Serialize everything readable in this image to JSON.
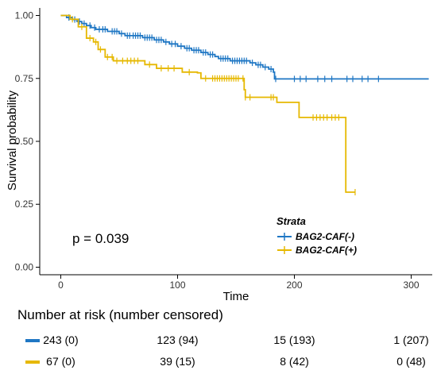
{
  "chart_data": {
    "type": "line",
    "subtype": "kaplan-meier-step",
    "xlabel": "Time",
    "ylabel": "Survival probability",
    "xlim": [
      -18,
      318
    ],
    "ylim": [
      -0.03,
      1.03
    ],
    "xticks": [
      0,
      100,
      200,
      300
    ],
    "yticks": [
      0.0,
      0.25,
      0.5,
      0.75,
      1.0
    ],
    "ytick_labels": [
      "0.00",
      "0.25",
      "0.50",
      "0.75",
      "1.00"
    ],
    "grid": false,
    "annotation": "p = 0.039",
    "legend": {
      "title": "Strata",
      "placement": "bottom-right",
      "entries": [
        "BAG2-CAF(-)",
        "BAG2-CAF(+)"
      ]
    },
    "series": [
      {
        "name": "BAG2-CAF(-)",
        "color": "#1f77c4",
        "steps": [
          [
            0,
            1.0
          ],
          [
            5,
            0.992
          ],
          [
            10,
            0.984
          ],
          [
            14,
            0.976
          ],
          [
            18,
            0.968
          ],
          [
            22,
            0.96
          ],
          [
            26,
            0.952
          ],
          [
            30,
            0.945
          ],
          [
            40,
            0.937
          ],
          [
            50,
            0.928
          ],
          [
            55,
            0.92
          ],
          [
            70,
            0.912
          ],
          [
            80,
            0.903
          ],
          [
            88,
            0.895
          ],
          [
            93,
            0.887
          ],
          [
            100,
            0.878
          ],
          [
            106,
            0.87
          ],
          [
            112,
            0.862
          ],
          [
            120,
            0.853
          ],
          [
            126,
            0.845
          ],
          [
            132,
            0.837
          ],
          [
            135,
            0.829
          ],
          [
            145,
            0.82
          ],
          [
            162,
            0.812
          ],
          [
            167,
            0.804
          ],
          [
            173,
            0.795
          ],
          [
            178,
            0.787
          ],
          [
            182,
            0.775
          ],
          [
            183,
            0.748
          ],
          [
            315,
            0.748
          ]
        ],
        "censor_times": [
          7,
          12,
          16,
          20,
          25,
          29,
          33,
          36,
          38,
          44,
          46,
          48,
          52,
          57,
          59,
          62,
          64,
          66,
          68,
          72,
          74,
          76,
          78,
          82,
          84,
          86,
          90,
          95,
          98,
          103,
          108,
          110,
          114,
          116,
          118,
          122,
          124,
          128,
          130,
          137,
          139,
          141,
          143,
          147,
          149,
          151,
          153,
          155,
          157,
          159,
          164,
          169,
          171,
          175,
          180,
          184,
          200,
          205,
          210,
          220,
          226,
          232,
          245,
          250,
          258,
          263,
          272
        ]
      },
      {
        "name": "BAG2-CAF(+)",
        "color": "#e6b800",
        "steps": [
          [
            0,
            1.0
          ],
          [
            8,
            0.985
          ],
          [
            15,
            0.955
          ],
          [
            22,
            0.91
          ],
          [
            28,
            0.895
          ],
          [
            32,
            0.865
          ],
          [
            38,
            0.835
          ],
          [
            45,
            0.82
          ],
          [
            68,
            0.82
          ],
          [
            72,
            0.805
          ],
          [
            82,
            0.79
          ],
          [
            100,
            0.79
          ],
          [
            104,
            0.775
          ],
          [
            117,
            0.772
          ],
          [
            120,
            0.75
          ],
          [
            155,
            0.75
          ],
          [
            157,
            0.705
          ],
          [
            158,
            0.675
          ],
          [
            184,
            0.675
          ],
          [
            185,
            0.655
          ],
          [
            204,
            0.595
          ],
          [
            243,
            0.595
          ],
          [
            244,
            0.298
          ],
          [
            252,
            0.298
          ]
        ],
        "censor_times": [
          10,
          18,
          25,
          30,
          34,
          40,
          44,
          48,
          53,
          57,
          60,
          63,
          66,
          76,
          86,
          92,
          97,
          110,
          124,
          130,
          132,
          134,
          136,
          138,
          140,
          142,
          144,
          146,
          148,
          150,
          152,
          156,
          158,
          162,
          180,
          182,
          216,
          219,
          222,
          225,
          228,
          232,
          235,
          238,
          252
        ]
      }
    ]
  },
  "risk_table": {
    "title": "Number at risk (number censored)",
    "time_points": [
      0,
      100,
      200,
      300
    ],
    "rows": [
      {
        "color": "#1f77c4",
        "cells": [
          "243 (0)",
          "123 (94)",
          "15 (193)",
          "1 (207)"
        ]
      },
      {
        "color": "#e6b800",
        "cells": [
          "67 (0)",
          "39 (15)",
          "8 (42)",
          "0 (48)"
        ]
      }
    ]
  }
}
